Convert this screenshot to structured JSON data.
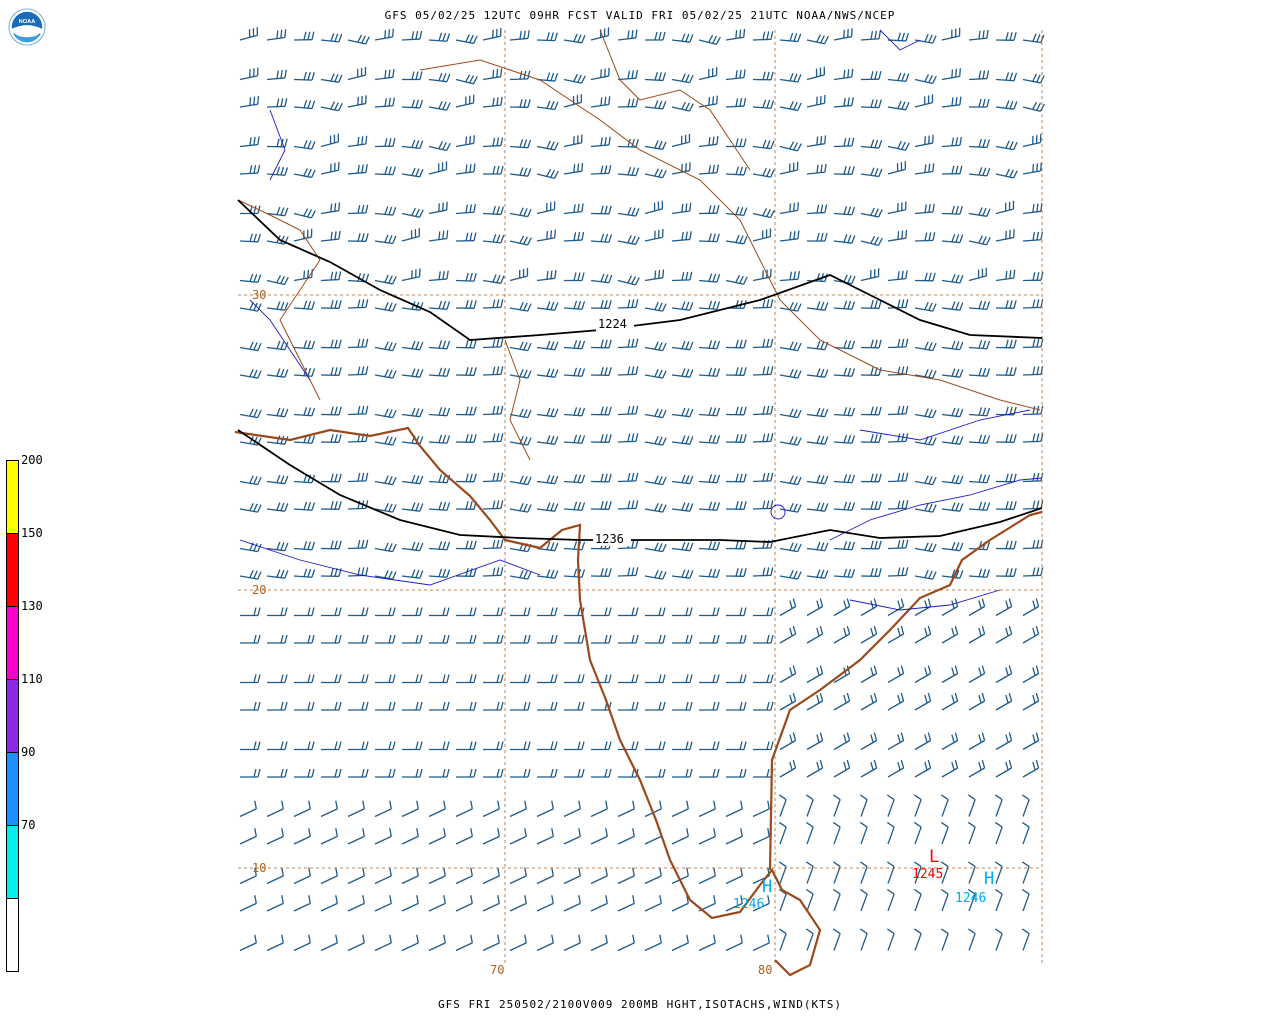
{
  "header": {
    "title": "GFS 05/02/25 12UTC 09HR FCST VALID FRI 05/02/25 21UTC NOAA/NWS/NCEP"
  },
  "footer": {
    "title": "GFS FRI 250502/2100V009 200MB HGHT,ISOTACHS,WIND(KTS)"
  },
  "logo": {
    "text": "NOAA",
    "icon": "noaa-logo-icon"
  },
  "legend": {
    "bins": [
      {
        "label": "",
        "color": "#ffffff"
      },
      {
        "label": "70",
        "color": "#00eeee"
      },
      {
        "label": "90",
        "color": "#1e90ff"
      },
      {
        "label": "110",
        "color": "#8a2be2"
      },
      {
        "label": "130",
        "color": "#ff00cc"
      },
      {
        "label": "150",
        "color": "#ff0000"
      },
      {
        "label": "200",
        "color": "#ffff00"
      }
    ]
  },
  "map": {
    "lat_labels": [
      "30",
      "20",
      "10"
    ],
    "lon_labels": [
      "70",
      "80"
    ],
    "contours": [
      {
        "label": "1224"
      },
      {
        "label": "1236"
      }
    ],
    "centers": [
      {
        "type": "L",
        "value": "1245",
        "color": "#ff0000"
      },
      {
        "type": "H",
        "value": "1246",
        "color": "#00aaee"
      },
      {
        "type": "H",
        "value": "1246",
        "color": "#00aaee"
      }
    ],
    "colors": {
      "barb": "#1f5a8a",
      "coast": "#9a4a1a",
      "grid": "#b06020",
      "contour": "#000000",
      "isotach": "#1a1acc"
    }
  }
}
